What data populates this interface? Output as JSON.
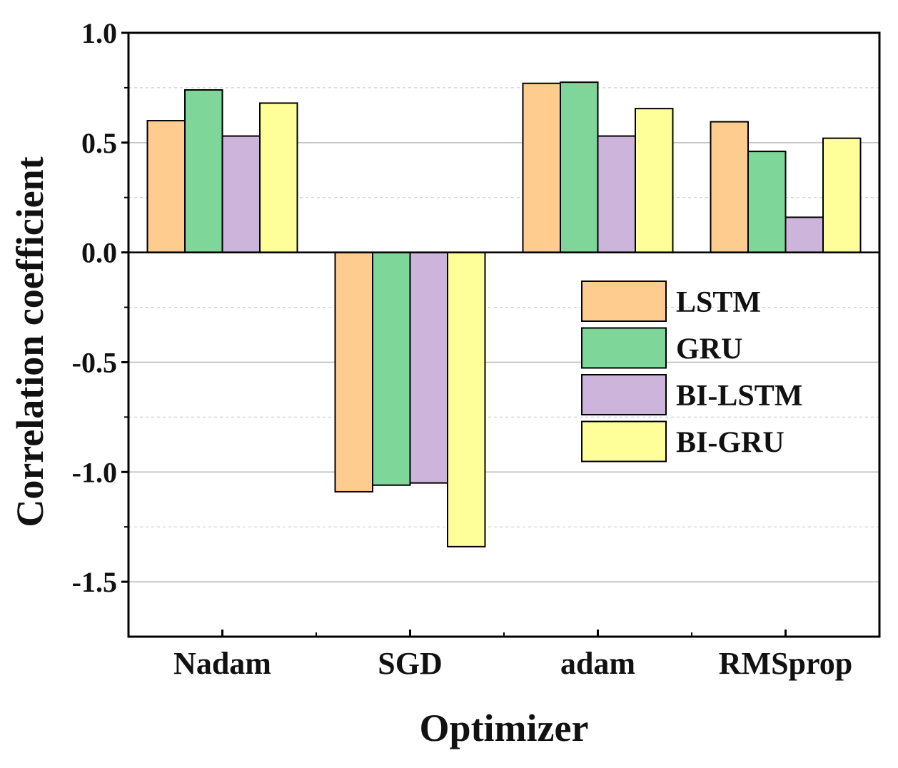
{
  "chart_data": {
    "type": "bar",
    "title": "",
    "xlabel": "Optimizer",
    "ylabel": "Correlation coefficient",
    "categories": [
      "Nadam",
      "SGD",
      "adam",
      "RMSprop"
    ],
    "ylim": [
      -1.75,
      1.0
    ],
    "yticks": [
      1.0,
      0.5,
      0.0,
      -0.5,
      -1.0,
      -1.5
    ],
    "ytick_labels": [
      "1.0",
      "0.5",
      "0.0",
      "-0.5",
      "-1.0",
      "-1.5"
    ],
    "minor_gridlines": [
      0.75,
      0.25,
      -0.25,
      -0.75,
      -1.25
    ],
    "legend_position": "center-right",
    "series": [
      {
        "name": "LSTM",
        "color": "#FFCC8F",
        "values": [
          0.6,
          -1.09,
          0.77,
          0.595
        ]
      },
      {
        "name": "GRU",
        "color": "#7FD699",
        "values": [
          0.74,
          -1.06,
          0.775,
          0.46
        ]
      },
      {
        "name": "BI-LSTM",
        "color": "#CDB4DA",
        "values": [
          0.53,
          -1.05,
          0.53,
          0.16
        ]
      },
      {
        "name": "BI-GRU",
        "color": "#FFFF99",
        "values": [
          0.68,
          -1.34,
          0.655,
          0.52
        ]
      }
    ]
  }
}
